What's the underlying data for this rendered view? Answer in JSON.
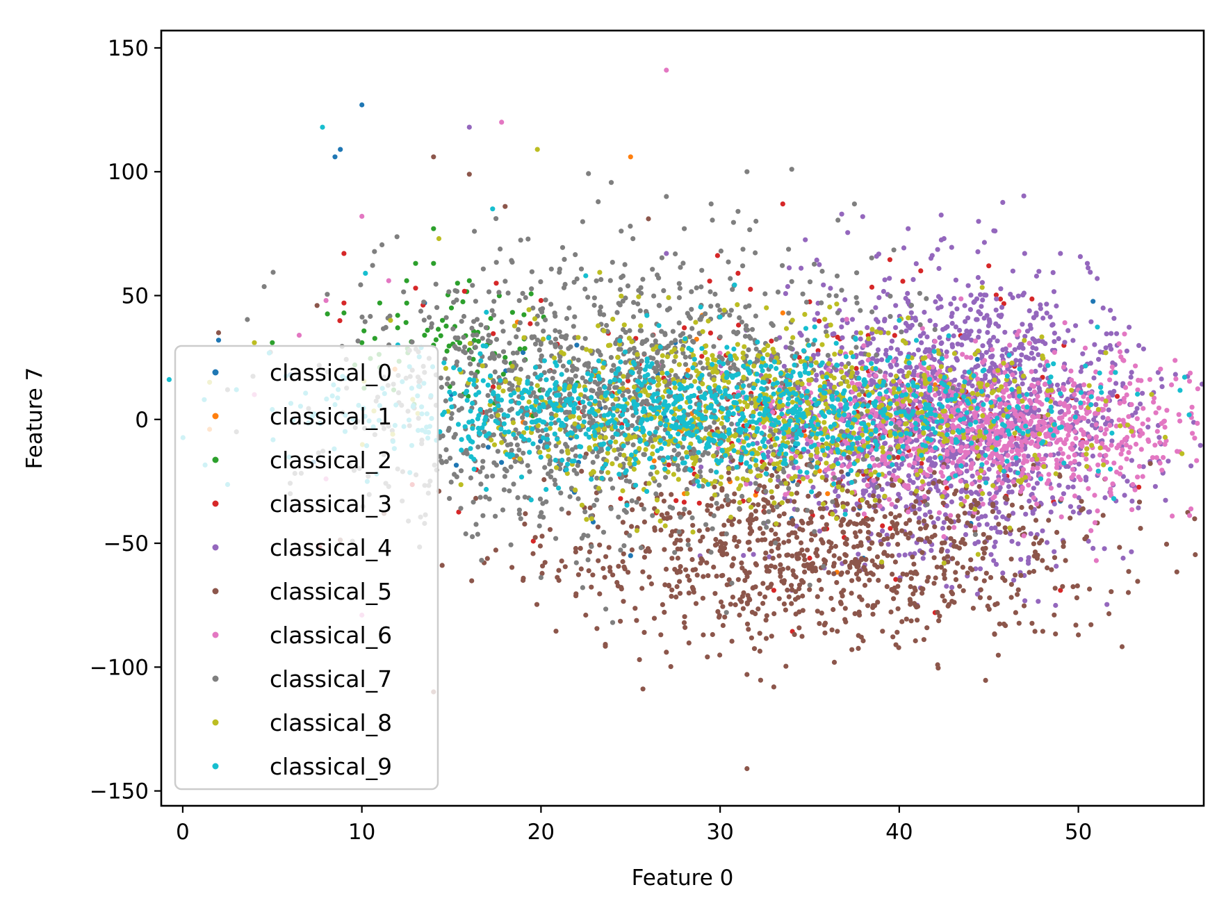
{
  "chart_data": {
    "type": "scatter",
    "title": "",
    "xlabel": "Feature 0",
    "ylabel": "Feature 7",
    "xlim": [
      -1.2,
      57
    ],
    "ylim": [
      -156,
      157
    ],
    "x_ticks": [
      0,
      10,
      20,
      30,
      40,
      50
    ],
    "y_ticks": [
      150,
      100,
      50,
      0,
      -50,
      -100,
      -150
    ],
    "x_tick_labels": [
      "0",
      "10",
      "20",
      "30",
      "40",
      "50"
    ],
    "y_tick_labels": [
      "150",
      "100",
      "50",
      "0",
      "−50",
      "−100",
      "−150"
    ],
    "grid": false,
    "legend_position": "lower-left",
    "series": [
      {
        "name": "classical_0",
        "color": "#1f77b4",
        "points": [
          [
            2,
            32
          ],
          [
            8.5,
            106
          ],
          [
            8.8,
            109
          ],
          [
            10,
            127
          ],
          [
            13.5,
            47
          ],
          [
            19,
            27
          ],
          [
            25,
            -55
          ],
          [
            34,
            -40
          ],
          [
            38,
            -56
          ],
          [
            44,
            -42
          ],
          [
            49,
            -33
          ],
          [
            51,
            -3
          ],
          [
            6,
            18
          ],
          [
            15,
            10
          ],
          [
            22,
            30
          ]
        ],
        "cluster": {
          "cx": 30,
          "sx": 9,
          "cy": 0,
          "sy": 24,
          "n": 40,
          "seed": 11
        }
      },
      {
        "name": "classical_1",
        "color": "#ff7f0e",
        "points": [
          [
            25,
            106
          ],
          [
            29,
            42
          ],
          [
            33.5,
            43
          ],
          [
            36,
            -30
          ],
          [
            42,
            14
          ],
          [
            47,
            -10
          ],
          [
            1.5,
            -4
          ],
          [
            28,
            -30
          ]
        ],
        "cluster": {
          "cx": 30,
          "sx": 10,
          "cy": 0,
          "sy": 20,
          "n": 20,
          "seed": 12
        }
      },
      {
        "name": "classical_2",
        "color": "#2ca02c",
        "points": [
          [
            14,
            77
          ],
          [
            13,
            63
          ],
          [
            12.5,
            56
          ],
          [
            11,
            47
          ],
          [
            14,
            63
          ],
          [
            16,
            56
          ],
          [
            12,
            42
          ],
          [
            15,
            45
          ],
          [
            10,
            31
          ],
          [
            12,
            37
          ],
          [
            14.5,
            40
          ],
          [
            17,
            37
          ],
          [
            13.5,
            34
          ],
          [
            18,
            25
          ],
          [
            9,
            43
          ],
          [
            11,
            21
          ],
          [
            16,
            28
          ],
          [
            14,
            30
          ],
          [
            5,
            31
          ],
          [
            20,
            12
          ]
        ],
        "cluster": {
          "cx": 15,
          "sx": 3,
          "cy": 30,
          "sy": 12,
          "n": 60,
          "seed": 13
        }
      },
      {
        "name": "classical_3",
        "color": "#d62728",
        "points": [
          [
            9,
            67
          ],
          [
            9,
            47
          ],
          [
            13,
            53
          ],
          [
            17.5,
            55
          ],
          [
            33.5,
            87
          ],
          [
            45,
            62
          ],
          [
            39.5,
            -44
          ],
          [
            49,
            -69
          ],
          [
            42,
            -78
          ],
          [
            33,
            -69
          ],
          [
            35,
            -56
          ],
          [
            48,
            17
          ],
          [
            31,
            59
          ],
          [
            28,
            37
          ],
          [
            20,
            48
          ]
        ],
        "cluster": {
          "cx": 35,
          "sx": 9,
          "cy": 5,
          "sy": 28,
          "n": 180,
          "seed": 14
        }
      },
      {
        "name": "classical_4",
        "color": "#9467bd",
        "points": [
          [
            16,
            118
          ],
          [
            27,
            67
          ],
          [
            40.5,
            77
          ],
          [
            42.5,
            73
          ],
          [
            47,
            67
          ],
          [
            49,
            67
          ],
          [
            50.5,
            63
          ],
          [
            52.5,
            -56
          ],
          [
            54,
            -17
          ],
          [
            53,
            -33
          ],
          [
            41,
            -75
          ],
          [
            48,
            -45
          ],
          [
            44,
            -38
          ]
        ],
        "cluster": {
          "cx": 43,
          "sx": 5,
          "cy": 2,
          "sy": 27,
          "n": 1600,
          "seed": 15
        }
      },
      {
        "name": "classical_5",
        "color": "#8c564b",
        "points": [
          [
            2,
            35
          ],
          [
            7.5,
            46
          ],
          [
            14,
            106
          ],
          [
            16,
            99
          ],
          [
            18,
            86
          ],
          [
            26,
            81
          ],
          [
            31.5,
            -103
          ],
          [
            33,
            -108
          ],
          [
            31.5,
            -141
          ],
          [
            27,
            -94
          ],
          [
            25.5,
            -97
          ],
          [
            22.5,
            -79
          ],
          [
            14,
            -110
          ],
          [
            50,
            -87
          ],
          [
            46.5,
            -78
          ],
          [
            19,
            -65
          ],
          [
            21,
            -65
          ]
        ],
        "cluster": {
          "cx": 36,
          "sx": 8,
          "cy": -55,
          "sy": 18,
          "n": 950,
          "seed": 16
        }
      },
      {
        "name": "classical_6",
        "color": "#e377c2",
        "points": [
          [
            27,
            141
          ],
          [
            17.8,
            120
          ],
          [
            10,
            82
          ],
          [
            11.5,
            56
          ],
          [
            6.5,
            34
          ],
          [
            8,
            48
          ],
          [
            10,
            -79
          ],
          [
            8,
            -24
          ],
          [
            4,
            10
          ],
          [
            51,
            -57
          ],
          [
            49,
            -12
          ],
          [
            50,
            0
          ],
          [
            48.5,
            5
          ]
        ],
        "cluster": {
          "cx": 45,
          "sx": 6,
          "cy": -3,
          "sy": 14,
          "n": 1000,
          "seed": 17
        }
      },
      {
        "name": "classical_7",
        "color": "#7f7f7f",
        "points": [
          [
            27,
            90
          ],
          [
            31.5,
            100
          ],
          [
            34,
            101
          ],
          [
            37.5,
            87
          ],
          [
            29.5,
            87
          ],
          [
            31,
            84
          ],
          [
            32,
            80
          ],
          [
            28,
            77
          ],
          [
            24,
            -82
          ],
          [
            13.5,
            -42
          ],
          [
            12,
            -20
          ],
          [
            6,
            -30
          ],
          [
            3,
            -5
          ],
          [
            2.5,
            12
          ]
        ],
        "cluster": {
          "cx": 24,
          "sx": 7,
          "cy": 10,
          "sy": 28,
          "n": 1400,
          "seed": 18
        }
      },
      {
        "name": "classical_8",
        "color": "#bcbd22",
        "points": [
          [
            19.8,
            109
          ],
          [
            14.3,
            73
          ],
          [
            4,
            31
          ],
          [
            11.6,
            40
          ],
          [
            40.5,
            41
          ],
          [
            36.5,
            -40
          ],
          [
            42.5,
            -58
          ],
          [
            1.5,
            15
          ]
        ],
        "cluster": {
          "cx": 33,
          "sx": 8,
          "cy": 2,
          "sy": 18,
          "n": 900,
          "seed": 19
        }
      },
      {
        "name": "classical_9",
        "color": "#17becf",
        "points": [
          [
            7.8,
            118
          ],
          [
            17.3,
            85
          ],
          [
            10.2,
            59
          ],
          [
            22.5,
            58
          ],
          [
            5,
            4
          ],
          [
            3,
            12
          ],
          [
            1.2,
            8
          ],
          [
            40,
            40
          ]
        ],
        "cluster": {
          "cx": 30,
          "sx": 10,
          "cy": 3,
          "sy": 13,
          "n": 1100,
          "seed": 20
        }
      }
    ]
  }
}
